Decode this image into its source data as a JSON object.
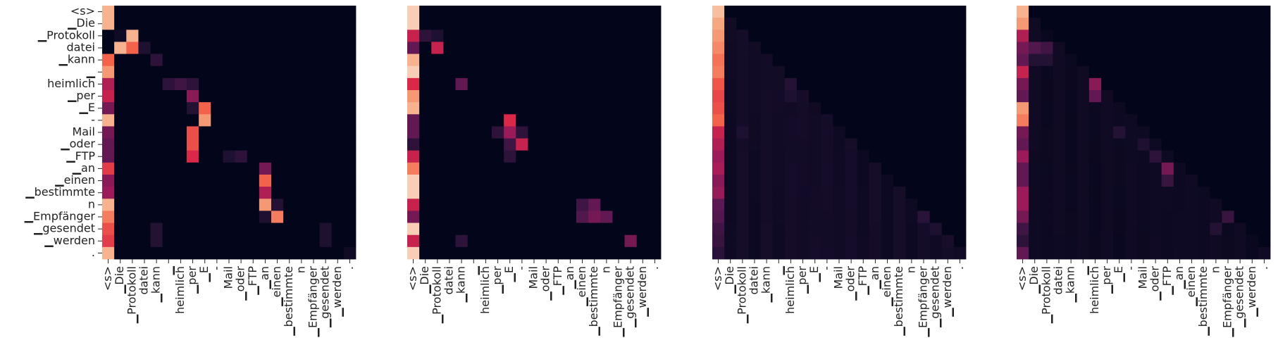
{
  "chart_data": {
    "type": "heatmap",
    "colormap": "rocket",
    "tokens": [
      "<s>",
      "▁Die",
      "▁Protokoll",
      "datei",
      "▁kann",
      "▁",
      "heimlich",
      "▁per",
      "▁E",
      "-",
      "Mail",
      "▁oder",
      "▁FTP",
      "▁an",
      "▁einen",
      "▁bestimmte",
      "n",
      "▁Empfänger",
      "▁gesendet",
      "▁werden",
      "."
    ],
    "panels": [
      {
        "show_y_labels": true,
        "strong": [
          [
            0,
            0,
            0.9
          ],
          [
            1,
            0,
            0.9
          ],
          [
            3,
            1,
            0.9
          ],
          [
            4,
            0,
            0.75
          ],
          [
            5,
            0,
            0.85
          ],
          [
            6,
            0,
            0.5
          ],
          [
            7,
            0,
            0.55
          ],
          [
            8,
            0,
            0.35
          ],
          [
            9,
            0,
            0.9
          ],
          [
            10,
            0,
            0.35
          ],
          [
            11,
            0,
            0.3
          ],
          [
            12,
            0,
            0.3
          ],
          [
            13,
            0,
            0.65
          ],
          [
            14,
            0,
            0.4
          ],
          [
            15,
            0,
            0.45
          ],
          [
            16,
            0,
            0.9
          ],
          [
            17,
            0,
            0.8
          ],
          [
            18,
            0,
            0.7
          ],
          [
            19,
            0,
            0.65
          ],
          [
            20,
            0,
            0.9
          ],
          [
            2,
            1,
            0.05
          ],
          [
            2,
            2,
            0.9
          ],
          [
            3,
            2,
            0.75
          ],
          [
            3,
            3,
            0.1
          ],
          [
            4,
            4,
            0.15
          ],
          [
            6,
            5,
            0.15
          ],
          [
            6,
            6,
            0.2
          ],
          [
            6,
            7,
            0.15
          ],
          [
            7,
            7,
            0.4
          ],
          [
            8,
            8,
            0.75
          ],
          [
            9,
            8,
            0.85
          ],
          [
            8,
            7,
            0.12
          ],
          [
            10,
            7,
            0.7
          ],
          [
            11,
            7,
            0.7
          ],
          [
            12,
            7,
            0.6
          ],
          [
            12,
            10,
            0.1
          ],
          [
            12,
            11,
            0.15
          ],
          [
            13,
            13,
            0.35
          ],
          [
            14,
            13,
            0.75
          ],
          [
            15,
            13,
            0.5
          ],
          [
            16,
            13,
            0.85
          ],
          [
            16,
            14,
            0.12
          ],
          [
            17,
            14,
            0.8
          ],
          [
            17,
            13,
            0.1
          ],
          [
            18,
            4,
            0.12
          ],
          [
            19,
            4,
            0.12
          ],
          [
            18,
            18,
            0.1
          ],
          [
            19,
            18,
            0.1
          ],
          [
            20,
            20,
            0.05
          ]
        ]
      },
      {
        "show_y_labels": false,
        "strong": [
          [
            0,
            0,
            0.95
          ],
          [
            1,
            0,
            0.95
          ],
          [
            2,
            0,
            0.55
          ],
          [
            3,
            0,
            0.3
          ],
          [
            4,
            0,
            0.9
          ],
          [
            5,
            0,
            0.95
          ],
          [
            6,
            0,
            0.6
          ],
          [
            7,
            0,
            0.85
          ],
          [
            8,
            0,
            0.9
          ],
          [
            9,
            0,
            0.3
          ],
          [
            10,
            0,
            0.3
          ],
          [
            11,
            0,
            0.15
          ],
          [
            12,
            0,
            0.55
          ],
          [
            13,
            0,
            0.8
          ],
          [
            14,
            0,
            0.95
          ],
          [
            15,
            0,
            0.95
          ],
          [
            16,
            0,
            0.55
          ],
          [
            17,
            0,
            0.35
          ],
          [
            18,
            0,
            0.95
          ],
          [
            19,
            0,
            0.55
          ],
          [
            20,
            0,
            0.95
          ],
          [
            2,
            1,
            0.15
          ],
          [
            2,
            2,
            0.1
          ],
          [
            3,
            2,
            0.55
          ],
          [
            6,
            4,
            0.3
          ],
          [
            9,
            8,
            0.6
          ],
          [
            10,
            8,
            0.45
          ],
          [
            10,
            7,
            0.15
          ],
          [
            10,
            9,
            0.15
          ],
          [
            11,
            9,
            0.55
          ],
          [
            11,
            8,
            0.2
          ],
          [
            12,
            8,
            0.15
          ],
          [
            16,
            14,
            0.2
          ],
          [
            16,
            15,
            0.3
          ],
          [
            17,
            15,
            0.35
          ],
          [
            17,
            14,
            0.25
          ],
          [
            17,
            16,
            0.3
          ],
          [
            19,
            18,
            0.35
          ],
          [
            19,
            4,
            0.15
          ]
        ]
      },
      {
        "show_y_labels": false,
        "strong": [
          [
            0,
            0,
            0.92
          ],
          [
            1,
            0,
            0.88
          ],
          [
            2,
            0,
            0.85
          ],
          [
            3,
            0,
            0.82
          ],
          [
            4,
            0,
            0.78
          ],
          [
            5,
            0,
            0.8
          ],
          [
            6,
            0,
            0.72
          ],
          [
            7,
            0,
            0.68
          ],
          [
            8,
            0,
            0.7
          ],
          [
            9,
            0,
            0.75
          ],
          [
            10,
            0,
            0.55
          ],
          [
            11,
            0,
            0.5
          ],
          [
            12,
            0,
            0.45
          ],
          [
            13,
            0,
            0.48
          ],
          [
            14,
            0,
            0.4
          ],
          [
            15,
            0,
            0.44
          ],
          [
            16,
            0,
            0.28
          ],
          [
            17,
            0,
            0.25
          ],
          [
            18,
            0,
            0.2
          ],
          [
            19,
            0,
            0.18
          ],
          [
            20,
            0,
            0.14
          ],
          [
            6,
            6,
            0.12
          ],
          [
            7,
            6,
            0.1
          ],
          [
            10,
            2,
            0.1
          ],
          [
            17,
            17,
            0.14
          ],
          [
            18,
            18,
            0.1
          ],
          [
            19,
            19,
            0.08
          ]
        ],
        "diagonal_wash": 0.07
      },
      {
        "show_y_labels": false,
        "strong": [
          [
            0,
            0,
            0.9
          ],
          [
            1,
            0,
            0.85
          ],
          [
            2,
            0,
            0.5
          ],
          [
            3,
            0,
            0.35
          ],
          [
            4,
            0,
            0.3
          ],
          [
            5,
            0,
            0.55
          ],
          [
            6,
            0,
            0.35
          ],
          [
            7,
            0,
            0.3
          ],
          [
            8,
            0,
            0.85
          ],
          [
            9,
            0,
            0.8
          ],
          [
            10,
            0,
            0.35
          ],
          [
            11,
            0,
            0.3
          ],
          [
            12,
            0,
            0.45
          ],
          [
            13,
            0,
            0.3
          ],
          [
            14,
            0,
            0.3
          ],
          [
            15,
            0,
            0.45
          ],
          [
            16,
            0,
            0.45
          ],
          [
            17,
            0,
            0.35
          ],
          [
            18,
            0,
            0.2
          ],
          [
            19,
            0,
            0.15
          ],
          [
            20,
            0,
            0.3
          ],
          [
            3,
            1,
            0.25
          ],
          [
            3,
            2,
            0.2
          ],
          [
            4,
            1,
            0.12
          ],
          [
            4,
            2,
            0.12
          ],
          [
            6,
            6,
            0.4
          ],
          [
            7,
            6,
            0.3
          ],
          [
            10,
            8,
            0.12
          ],
          [
            11,
            10,
            0.1
          ],
          [
            12,
            11,
            0.15
          ],
          [
            13,
            12,
            0.35
          ],
          [
            14,
            12,
            0.18
          ],
          [
            17,
            17,
            0.18
          ],
          [
            18,
            16,
            0.12
          ]
        ],
        "diagonal_wash": 0.05
      }
    ]
  }
}
